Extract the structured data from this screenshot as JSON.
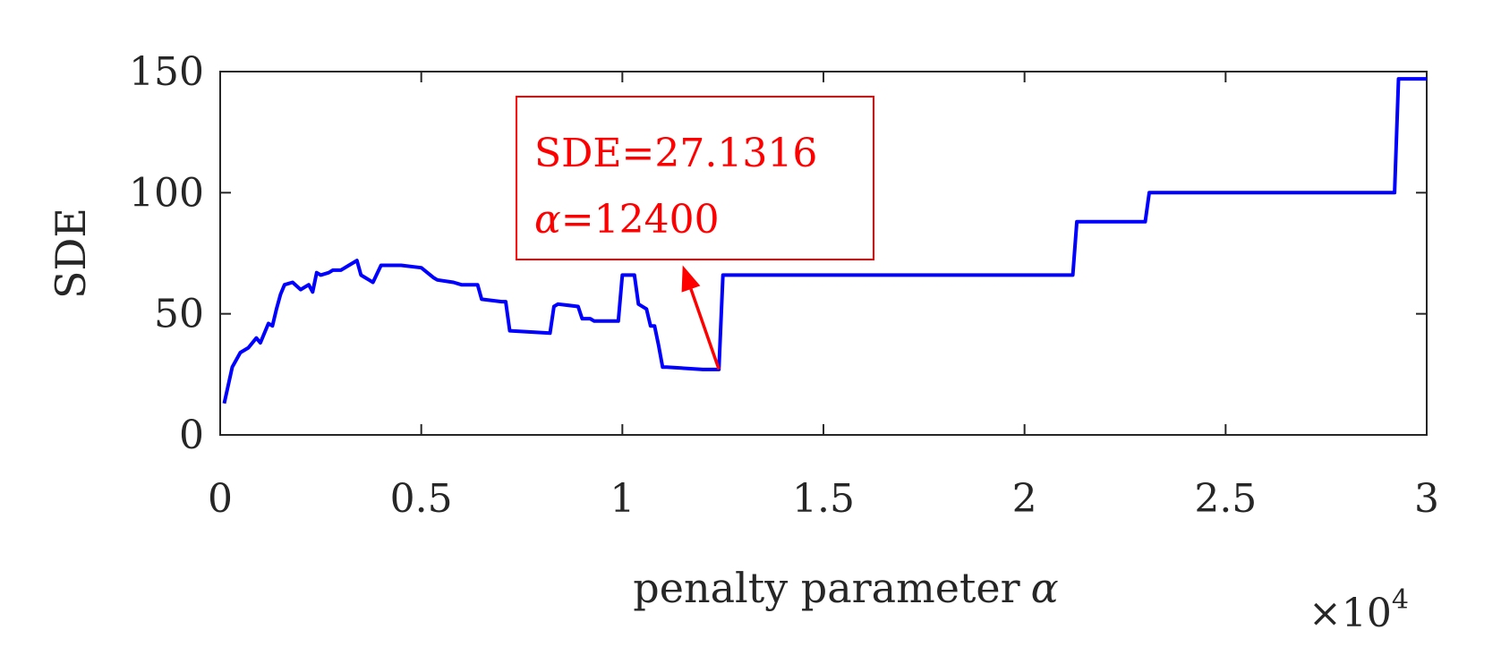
{
  "chart_data": {
    "type": "line",
    "title": "",
    "xlabel": "penalty parameter",
    "xlabel_symbol": "α",
    "ylabel": "SDE",
    "x_multiplier": "×10",
    "x_multiplier_exp": "4",
    "xlim": [
      0,
      30000
    ],
    "ylim": [
      0,
      150
    ],
    "xticks": [
      0,
      5000,
      10000,
      15000,
      20000,
      25000,
      30000
    ],
    "xtick_labels": [
      "0",
      "0.5",
      "1",
      "1.5",
      "2",
      "2.5",
      "3"
    ],
    "yticks": [
      0,
      50,
      100,
      150
    ],
    "ytick_labels": [
      "0",
      "50",
      "100",
      "150"
    ],
    "grid": false,
    "series": [
      {
        "color": "#0000ff",
        "x": [
          100,
          300,
          500,
          700,
          900,
          1000,
          1200,
          1300,
          1400,
          1500,
          1600,
          1800,
          2000,
          2200,
          2300,
          2400,
          2500,
          2700,
          2800,
          3000,
          3200,
          3400,
          3500,
          3600,
          3700,
          3800,
          4000,
          4100,
          4200,
          4500,
          5000,
          5300,
          5400,
          5800,
          6000,
          6400,
          6500,
          7000,
          7100,
          7200,
          8200,
          8300,
          8400,
          8900,
          9000,
          9200,
          9300,
          9900,
          10000,
          10300,
          10400,
          10600,
          10700,
          10800,
          10900,
          11000,
          11100,
          12000,
          12300,
          12400,
          12500,
          12600,
          13000,
          15000,
          18000,
          21200,
          21300,
          21400,
          23000,
          23100,
          23200,
          25000,
          27000,
          28500,
          29200,
          29300,
          30000
        ],
        "y": [
          13,
          28,
          34,
          36,
          40,
          38,
          46,
          45,
          52,
          58,
          62,
          63,
          60,
          62,
          59,
          67,
          66,
          67,
          68,
          68,
          70,
          72,
          66,
          65,
          64,
          63,
          70,
          70,
          70,
          70,
          69,
          65,
          64,
          63,
          62,
          62,
          56,
          55,
          55,
          43,
          42,
          53,
          54,
          53,
          48,
          48,
          47,
          47,
          66,
          66,
          54,
          52,
          45,
          45,
          37,
          28,
          28,
          27,
          27,
          27,
          66,
          66,
          66,
          66,
          66,
          66,
          88,
          88,
          88,
          100,
          100,
          100,
          100,
          100,
          100,
          147,
          147
        ]
      }
    ],
    "annotation": {
      "line1": "SDE=27.1316",
      "line2_symbol": "α",
      "line2_value": "=12400",
      "point": [
        12400,
        27.1316
      ],
      "arrow_head_at": [
        11500,
        70
      ],
      "color": "#ff0000"
    }
  }
}
